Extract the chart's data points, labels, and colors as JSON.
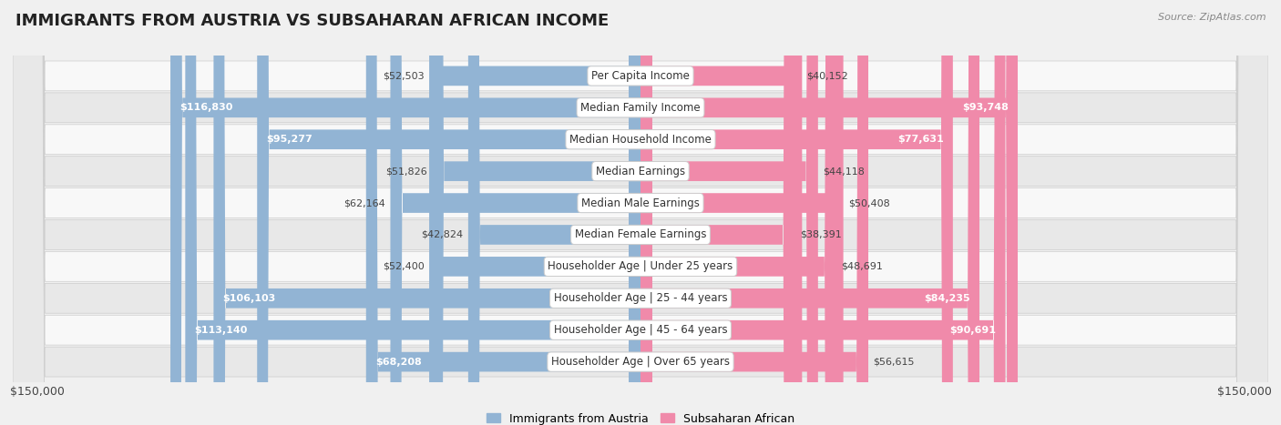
{
  "title": "IMMIGRANTS FROM AUSTRIA VS SUBSAHARAN AFRICAN INCOME",
  "source": "Source: ZipAtlas.com",
  "categories": [
    "Per Capita Income",
    "Median Family Income",
    "Median Household Income",
    "Median Earnings",
    "Median Male Earnings",
    "Median Female Earnings",
    "Householder Age | Under 25 years",
    "Householder Age | 25 - 44 years",
    "Householder Age | 45 - 64 years",
    "Householder Age | Over 65 years"
  ],
  "austria_values": [
    52503,
    116830,
    95277,
    51826,
    62164,
    42824,
    52400,
    106103,
    113140,
    68208
  ],
  "subsaharan_values": [
    40152,
    93748,
    77631,
    44118,
    50408,
    38391,
    48691,
    84235,
    90691,
    56615
  ],
  "austria_labels": [
    "$52,503",
    "$116,830",
    "$95,277",
    "$51,826",
    "$62,164",
    "$42,824",
    "$52,400",
    "$106,103",
    "$113,140",
    "$68,208"
  ],
  "subsaharan_labels": [
    "$40,152",
    "$93,748",
    "$77,631",
    "$44,118",
    "$50,408",
    "$38,391",
    "$48,691",
    "$84,235",
    "$90,691",
    "$56,615"
  ],
  "austria_color": "#92b4d4",
  "subsaharan_color": "#f08aaa",
  "bar_height": 0.62,
  "max_val": 150000,
  "background_color": "#f0f0f0",
  "row_bg_light": "#f8f8f8",
  "row_bg_dark": "#e8e8e8",
  "label_inside_threshold": 65000,
  "legend_austria": "Immigrants from Austria",
  "legend_subsaharan": "Subsaharan African",
  "xlim": 150000,
  "title_fontsize": 13,
  "label_fontsize": 8,
  "cat_fontsize": 8.5
}
